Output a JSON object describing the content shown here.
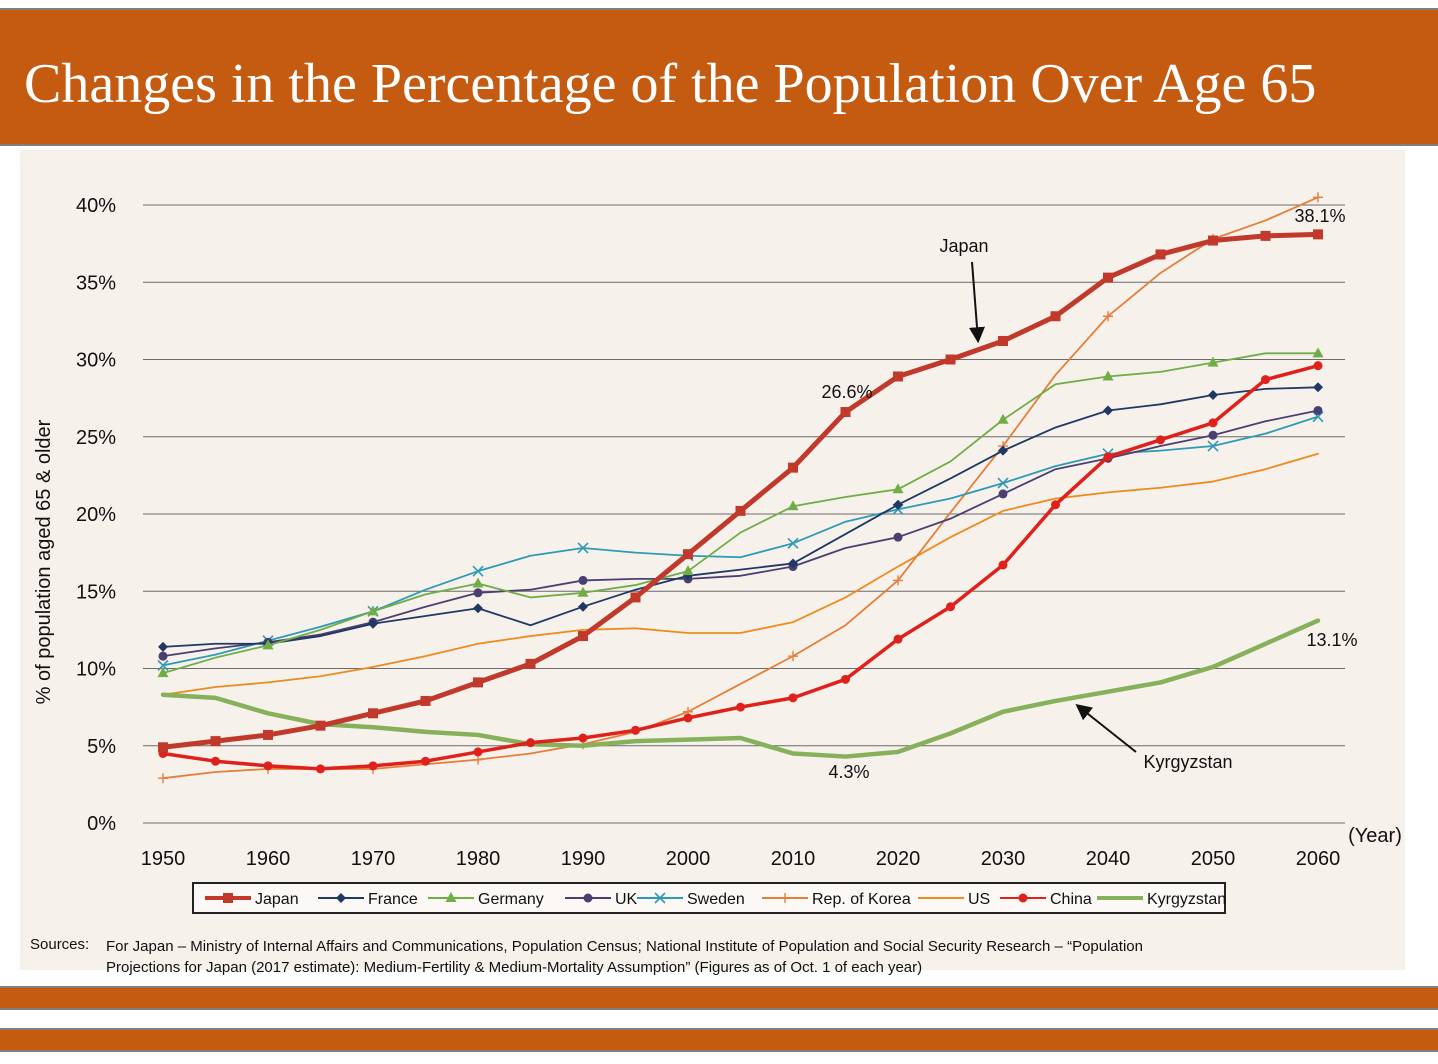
{
  "header": {
    "title": "Changes in the Percentage of the Population Over Age 65"
  },
  "colors": {
    "header_bg": "#c55a11",
    "Japan": "#c0392b",
    "France": "#1f3864",
    "Germany": "#70ad47",
    "UK": "#4b3f72",
    "Sweden": "#2e9ab5",
    "Rep. of Korea": "#e67e3a",
    "US": "#ed8b1f",
    "China": "#e0201b",
    "Kyrgyzstan": "#86b05a"
  },
  "chart_data": {
    "type": "line",
    "title": "",
    "xlabel": "(Year)",
    "ylabel": "% of population aged 65 & older",
    "x": [
      1950,
      1955,
      1960,
      1965,
      1970,
      1975,
      1980,
      1985,
      1990,
      1995,
      2000,
      2005,
      2010,
      2015,
      2020,
      2025,
      2030,
      2035,
      2040,
      2045,
      2050,
      2055,
      2060
    ],
    "x_ticks": [
      "1950",
      "1960",
      "1970",
      "1980",
      "1990",
      "2000",
      "2010",
      "2020",
      "2030",
      "2040",
      "2050",
      "2060"
    ],
    "y_ticks": [
      "0%",
      "5%",
      "10%",
      "15%",
      "20%",
      "25%",
      "30%",
      "35%",
      "40%"
    ],
    "xlim": [
      1950,
      2060
    ],
    "ylim": [
      0,
      40
    ],
    "grid": "horizontal",
    "legend_position": "bottom",
    "series": [
      {
        "name": "Japan",
        "marker": "square",
        "values": [
          4.9,
          5.3,
          5.7,
          6.3,
          7.1,
          7.9,
          9.1,
          10.3,
          12.1,
          14.6,
          17.4,
          20.2,
          23.0,
          26.6,
          28.9,
          30.0,
          31.2,
          32.8,
          35.3,
          36.8,
          37.7,
          38.0,
          38.1
        ]
      },
      {
        "name": "France",
        "marker": "diamond",
        "values": [
          11.4,
          11.6,
          11.6,
          12.1,
          12.9,
          13.4,
          13.9,
          12.8,
          14.0,
          15.1,
          16.0,
          16.4,
          16.8,
          18.7,
          20.6,
          22.3,
          24.1,
          25.6,
          26.7,
          27.1,
          27.7,
          28.1,
          28.2
        ]
      },
      {
        "name": "Germany",
        "marker": "triangle",
        "values": [
          9.7,
          10.7,
          11.5,
          12.5,
          13.7,
          14.8,
          15.5,
          14.6,
          14.9,
          15.4,
          16.3,
          18.8,
          20.5,
          21.1,
          21.6,
          23.4,
          26.1,
          28.4,
          28.9,
          29.2,
          29.8,
          30.4,
          30.4
        ]
      },
      {
        "name": "UK",
        "marker": "circle",
        "values": [
          10.8,
          11.3,
          11.7,
          12.2,
          13.0,
          14.0,
          14.9,
          15.1,
          15.7,
          15.8,
          15.8,
          16.0,
          16.6,
          17.8,
          18.5,
          19.7,
          21.3,
          22.9,
          23.6,
          24.4,
          25.1,
          26.0,
          26.7
        ]
      },
      {
        "name": "Sweden",
        "marker": "x",
        "values": [
          10.2,
          10.9,
          11.8,
          12.7,
          13.7,
          15.1,
          16.3,
          17.3,
          17.8,
          17.5,
          17.3,
          17.2,
          18.1,
          19.5,
          20.3,
          21.0,
          22.0,
          23.1,
          23.9,
          24.1,
          24.4,
          25.2,
          26.3
        ]
      },
      {
        "name": "Rep. of Korea",
        "marker": "plus",
        "values": [
          2.9,
          3.3,
          3.5,
          3.5,
          3.5,
          3.8,
          4.1,
          4.5,
          5.1,
          5.9,
          7.2,
          9.0,
          10.8,
          12.8,
          15.7,
          20.1,
          24.4,
          29.0,
          32.8,
          35.6,
          37.8,
          39.0,
          40.5
        ]
      },
      {
        "name": "US",
        "marker": "none",
        "values": [
          8.3,
          8.8,
          9.1,
          9.5,
          10.1,
          10.8,
          11.6,
          12.1,
          12.5,
          12.6,
          12.3,
          12.3,
          13.0,
          14.6,
          16.6,
          18.5,
          20.2,
          21.0,
          21.4,
          21.7,
          22.1,
          22.9,
          23.9
        ]
      },
      {
        "name": "China",
        "marker": "circle",
        "values": [
          4.5,
          4.0,
          3.7,
          3.5,
          3.7,
          4.0,
          4.6,
          5.2,
          5.5,
          6.0,
          6.8,
          7.5,
          8.1,
          9.3,
          11.9,
          14.0,
          16.7,
          20.6,
          23.7,
          24.8,
          25.9,
          28.7,
          29.6
        ]
      },
      {
        "name": "Kyrgyzstan",
        "marker": "none",
        "values": [
          8.3,
          8.1,
          7.1,
          6.4,
          6.2,
          5.9,
          5.7,
          5.1,
          5.0,
          5.3,
          5.4,
          5.5,
          4.5,
          4.3,
          4.6,
          5.8,
          7.2,
          7.9,
          8.5,
          9.1,
          10.1,
          11.6,
          13.1
        ]
      }
    ],
    "annotations": [
      {
        "text": "26.6%"
      },
      {
        "text": "38.1%"
      },
      {
        "text": "13.1%"
      },
      {
        "text": "4.3%"
      },
      {
        "text": "Japan"
      },
      {
        "text": "Kyrgyzstan"
      }
    ]
  },
  "sources": {
    "prefix": "Sources:",
    "line1": "For Japan – Ministry of Internal Affairs and Communications, Population Census; National Institute of Population and Social Security Research – “Population",
    "line2": "Projections for Japan (2017 estimate): Medium-Fertility & Medium-Mortality Assumption” (Figures as of Oct. 1 of each year)"
  }
}
